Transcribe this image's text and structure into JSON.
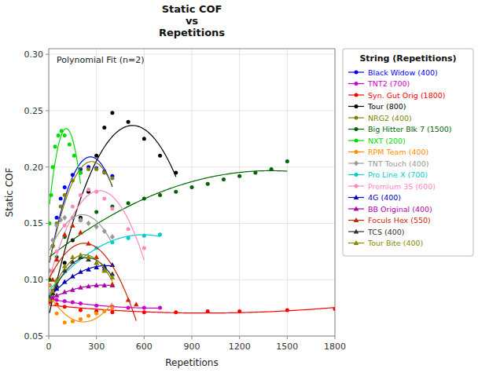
{
  "chart_data": {
    "type": "scatter",
    "title": "Static COF\nvs\nRepetitions",
    "x_label": "Repetitions",
    "y_label": "Static COF",
    "annotation": "Polynomial Fit (n=2)",
    "legend_title": "String (Repetitions)",
    "legend": "right",
    "grid": true,
    "xlim": [
      0,
      1800
    ],
    "ylim": [
      0.05,
      0.305
    ],
    "xticks": [
      0,
      300,
      600,
      900,
      1200,
      1500,
      1800
    ],
    "yticks": [
      0.05,
      {
        "value": 0.1,
        "label": "0.10"
      },
      0.15,
      {
        "value": 0.2,
        "label": "0.20"
      },
      0.25,
      {
        "value": 0.3,
        "label": "0.30"
      }
    ],
    "series": [
      {
        "name": "Black Widow (400)",
        "color": "#0000FF",
        "marker": "circle",
        "x": [
          5,
          25,
          50,
          75,
          100,
          150,
          200,
          250,
          300,
          350,
          400
        ],
        "values": [
          0.095,
          0.13,
          0.155,
          0.172,
          0.182,
          0.193,
          0.198,
          0.2,
          0.199,
          0.196,
          0.192
        ]
      },
      {
        "name": "TNT2 (700)",
        "color": "#CC00CC",
        "marker": "circle",
        "x": [
          5,
          50,
          100,
          150,
          200,
          300,
          400,
          500,
          600,
          700
        ],
        "values": [
          0.082,
          0.082,
          0.081,
          0.08,
          0.079,
          0.077,
          0.076,
          0.075,
          0.075,
          0.075
        ]
      },
      {
        "name": "Syn. Gut Orig (1800)",
        "color": "#FF0000",
        "marker": "circle",
        "x": [
          5,
          50,
          100,
          200,
          300,
          400,
          600,
          800,
          1000,
          1200,
          1500,
          1800
        ],
        "values": [
          0.08,
          0.078,
          0.076,
          0.073,
          0.072,
          0.071,
          0.071,
          0.071,
          0.072,
          0.072,
          0.073,
          0.074
        ]
      },
      {
        "name": "Tour (800)",
        "color": "#000000",
        "marker": "circle",
        "x": [
          5,
          25,
          50,
          100,
          150,
          200,
          250,
          300,
          350,
          400,
          500,
          600,
          700,
          800
        ],
        "values": [
          0.085,
          0.09,
          0.098,
          0.115,
          0.135,
          0.155,
          0.178,
          0.21,
          0.235,
          0.248,
          0.24,
          0.225,
          0.21,
          0.195
        ]
      },
      {
        "name": "NRG2 (400)",
        "color": "#808000",
        "marker": "circle",
        "x": [
          5,
          25,
          50,
          75,
          100,
          150,
          200,
          250,
          300,
          350,
          400
        ],
        "values": [
          0.1,
          0.13,
          0.15,
          0.165,
          0.175,
          0.188,
          0.195,
          0.198,
          0.198,
          0.195,
          0.19
        ]
      },
      {
        "name": "Big Hitter Blk 7 (1500)",
        "color": "#006400",
        "marker": "circle",
        "x": [
          5,
          50,
          100,
          200,
          300,
          400,
          500,
          600,
          700,
          800,
          900,
          1000,
          1100,
          1200,
          1300,
          1400,
          1500
        ],
        "values": [
          0.1,
          0.12,
          0.138,
          0.153,
          0.16,
          0.165,
          0.168,
          0.172,
          0.175,
          0.178,
          0.182,
          0.185,
          0.189,
          0.192,
          0.195,
          0.198,
          0.205
        ]
      },
      {
        "name": "NXT (200)",
        "color": "#00DD00",
        "marker": "circle",
        "x": [
          5,
          15,
          25,
          40,
          60,
          80,
          100,
          130,
          160,
          200
        ],
        "values": [
          0.15,
          0.175,
          0.2,
          0.218,
          0.228,
          0.232,
          0.228,
          0.22,
          0.21,
          0.195
        ]
      },
      {
        "name": "RPM Team (400)",
        "color": "#FF8C00",
        "marker": "circle",
        "x": [
          5,
          25,
          50,
          100,
          150,
          200,
          250,
          300,
          350,
          400
        ],
        "values": [
          0.095,
          0.082,
          0.07,
          0.062,
          0.063,
          0.065,
          0.068,
          0.07,
          0.072,
          0.075
        ]
      },
      {
        "name": "TNT Touch (400)",
        "color": "#999999",
        "marker": "diamond",
        "x": [
          5,
          25,
          50,
          75,
          100,
          150,
          200,
          250,
          300,
          350,
          400
        ],
        "values": [
          0.108,
          0.135,
          0.148,
          0.153,
          0.155,
          0.155,
          0.153,
          0.15,
          0.147,
          0.143,
          0.138
        ]
      },
      {
        "name": "Pro Line X (700)",
        "color": "#00CCCC",
        "marker": "circle",
        "x": [
          5,
          50,
          100,
          200,
          300,
          400,
          500,
          600,
          700
        ],
        "values": [
          0.088,
          0.098,
          0.108,
          0.12,
          0.128,
          0.133,
          0.137,
          0.139,
          0.14
        ]
      },
      {
        "name": "Premium 3S (600)",
        "color": "#FF88BB",
        "marker": "circle",
        "x": [
          5,
          25,
          50,
          100,
          150,
          200,
          250,
          300,
          350,
          400,
          500,
          600
        ],
        "values": [
          0.09,
          0.108,
          0.125,
          0.148,
          0.165,
          0.175,
          0.18,
          0.178,
          0.172,
          0.163,
          0.145,
          0.128
        ]
      },
      {
        "name": "4G (400)",
        "color": "#0000BB",
        "marker": "triangle",
        "x": [
          5,
          25,
          50,
          100,
          150,
          200,
          250,
          300,
          350,
          400
        ],
        "values": [
          0.083,
          0.088,
          0.092,
          0.098,
          0.103,
          0.107,
          0.109,
          0.111,
          0.112,
          0.113
        ]
      },
      {
        "name": "BB Original (400)",
        "color": "#AA00AA",
        "marker": "triangle",
        "x": [
          5,
          25,
          50,
          100,
          150,
          200,
          250,
          300,
          350,
          400
        ],
        "values": [
          0.082,
          0.084,
          0.086,
          0.089,
          0.091,
          0.093,
          0.094,
          0.095,
          0.095,
          0.095
        ]
      },
      {
        "name": "Foculs Hex (550)",
        "color": "#CC2200",
        "marker": "triangle",
        "x": [
          5,
          25,
          50,
          100,
          150,
          200,
          250,
          300,
          350,
          400,
          500,
          550
        ],
        "values": [
          0.082,
          0.1,
          0.118,
          0.14,
          0.148,
          0.142,
          0.132,
          0.12,
          0.108,
          0.096,
          0.082,
          0.078
        ]
      },
      {
        "name": "TCS (400)",
        "color": "#333333",
        "marker": "triangle",
        "x": [
          5,
          25,
          50,
          100,
          150,
          200,
          250,
          300,
          350,
          400
        ],
        "values": [
          0.082,
          0.088,
          0.095,
          0.108,
          0.116,
          0.12,
          0.118,
          0.115,
          0.11,
          0.105
        ]
      },
      {
        "name": "Tour Bite (400)",
        "color": "#888800",
        "marker": "triangle",
        "x": [
          5,
          25,
          50,
          100,
          150,
          200,
          250,
          300,
          350,
          400
        ],
        "values": [
          0.082,
          0.09,
          0.1,
          0.112,
          0.12,
          0.122,
          0.12,
          0.115,
          0.108,
          0.102
        ]
      }
    ]
  }
}
